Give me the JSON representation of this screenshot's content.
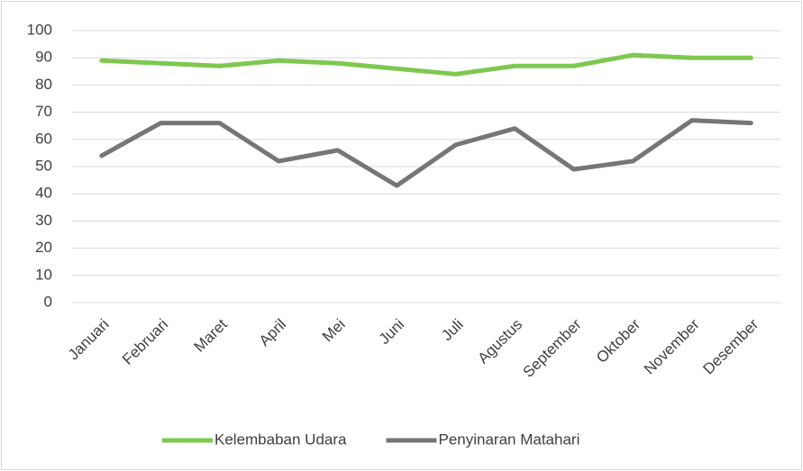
{
  "chart_data": {
    "type": "line",
    "categories": [
      "Januari",
      "Februari",
      "Maret",
      "April",
      "Mei",
      "Juni",
      "Juli",
      "Agustus",
      "September",
      "Oktober",
      "November",
      "Desember"
    ],
    "series": [
      {
        "name": "Kelembaban Udara",
        "color": "#7ec850",
        "values": [
          89,
          88,
          87,
          89,
          88,
          86,
          84,
          87,
          87,
          91,
          90,
          90
        ]
      },
      {
        "name": "Penyinaran Matahari",
        "color": "#767676",
        "values": [
          54,
          66,
          66,
          52,
          56,
          43,
          58,
          64,
          49,
          52,
          67,
          66
        ]
      }
    ],
    "ylim": [
      0,
      100
    ],
    "yticks": [
      0,
      10,
      20,
      30,
      40,
      50,
      60,
      70,
      80,
      90,
      100
    ],
    "grid": true,
    "legend": "bottom"
  }
}
